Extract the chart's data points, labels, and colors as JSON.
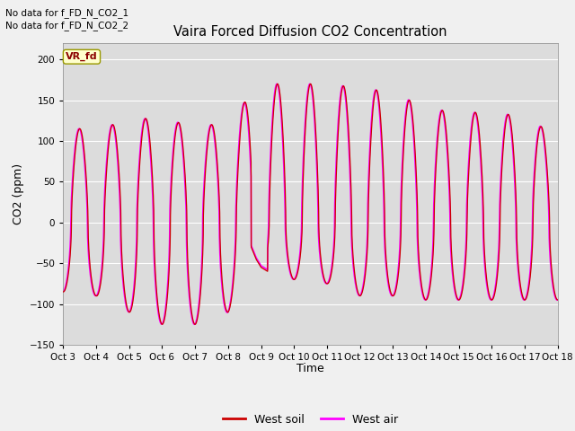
{
  "title": "Vaira Forced Diffusion CO2 Concentration",
  "ylabel": "CO2 (ppm)",
  "xlabel": "Time",
  "ylim": [
    -150,
    220
  ],
  "yticks": [
    -150,
    -100,
    -50,
    0,
    50,
    100,
    150,
    200
  ],
  "fig_bg_color": "#f0f0f0",
  "plot_bg_color": "#dcdcdc",
  "no_data_text_1": "No data for f_FD_N_CO2_1",
  "no_data_text_2": "No data for f_FD_N_CO2_2",
  "legend_label1": "West soil",
  "legend_label2": "West air",
  "annotation_text": "VR_fd",
  "x_tick_labels": [
    "Oct 3",
    "Oct 4",
    "Oct 5",
    "Oct 6",
    "Oct 7",
    "Oct 8",
    "Oct 9",
    "Oct 10",
    "Oct 11",
    "Oct 12",
    "Oct 13",
    "Oct 14",
    "Oct 15",
    "Oct 16",
    "Oct 17",
    "Oct 18"
  ],
  "color_soil": "#cc0000",
  "color_air": "#ff00ff",
  "grid_color": "#ffffff",
  "n_points": 3000
}
